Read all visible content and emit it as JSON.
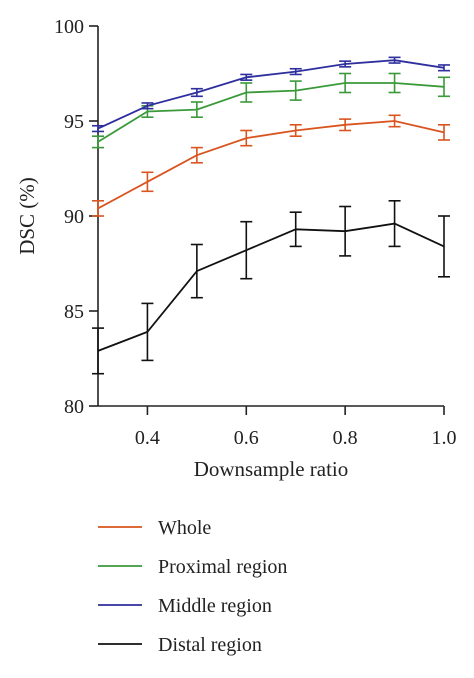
{
  "chart_data": {
    "type": "line",
    "xlabel": "Downsample ratio",
    "ylabel": "DSC (%)",
    "xlim": [
      0.3,
      1.0
    ],
    "ylim": [
      80,
      100
    ],
    "x_ticks": [
      0.4,
      0.6,
      0.8,
      1.0
    ],
    "x_tick_labels": [
      "0.4",
      "0.6",
      "0.8",
      "1.0"
    ],
    "y_ticks": [
      80,
      85,
      90,
      95,
      100
    ],
    "y_tick_labels": [
      "80",
      "85",
      "90",
      "95",
      "100"
    ],
    "x": [
      0.3,
      0.4,
      0.5,
      0.6,
      0.7,
      0.8,
      0.9,
      1.0
    ],
    "grid": false,
    "legend_placement": "bottom",
    "series": [
      {
        "name": "Whole",
        "color": "#d9541e",
        "values": [
          90.4,
          91.8,
          93.2,
          94.1,
          94.5,
          94.8,
          95.0,
          94.4
        ],
        "errors": [
          0.4,
          0.5,
          0.4,
          0.4,
          0.3,
          0.3,
          0.3,
          0.4
        ]
      },
      {
        "name": "Proximal region",
        "color": "#3a9a3a",
        "values": [
          93.9,
          95.5,
          95.6,
          96.5,
          96.6,
          97.0,
          97.0,
          96.8
        ],
        "errors": [
          0.3,
          0.3,
          0.4,
          0.5,
          0.5,
          0.5,
          0.5,
          0.5
        ]
      },
      {
        "name": "Middle region",
        "color": "#2e2e9e",
        "values": [
          94.6,
          95.8,
          96.5,
          97.3,
          97.6,
          98.0,
          98.2,
          97.8
        ],
        "errors": [
          0.15,
          0.15,
          0.2,
          0.15,
          0.15,
          0.15,
          0.15,
          0.15
        ]
      },
      {
        "name": "Distal region",
        "color": "#111111",
        "values": [
          82.9,
          83.9,
          87.1,
          88.2,
          89.3,
          89.2,
          89.6,
          88.4
        ],
        "errors": [
          1.2,
          1.5,
          1.4,
          1.5,
          0.9,
          1.3,
          1.2,
          1.6
        ]
      }
    ]
  }
}
